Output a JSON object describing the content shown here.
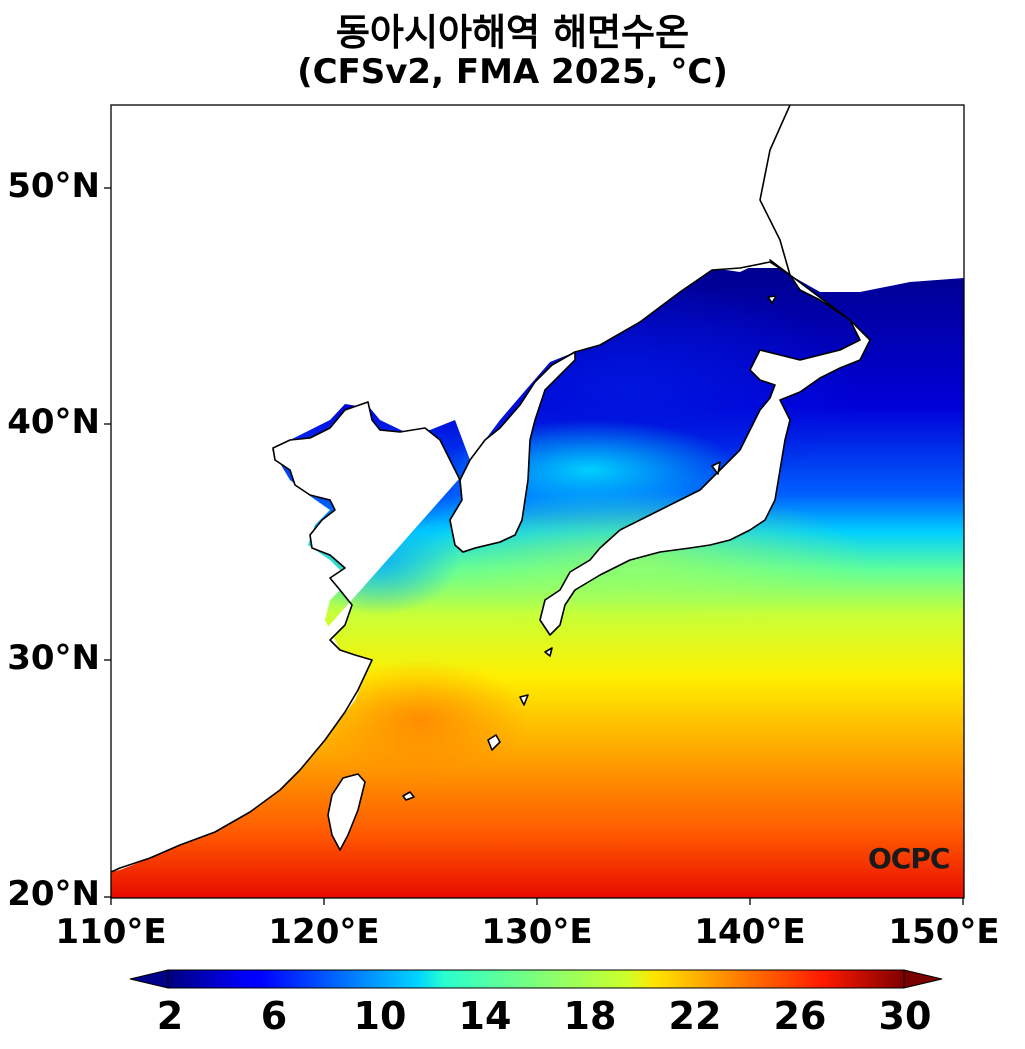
{
  "title": {
    "line1": "동아시아해역 해면수온",
    "line2": "(CFSv2, FMA 2025, °C)"
  },
  "map": {
    "lon_range": [
      110,
      150
    ],
    "lat_range": [
      20,
      53.5
    ],
    "y_ticks": [
      {
        "lat": 50,
        "label": "50°N"
      },
      {
        "lat": 40,
        "label": "40°N"
      },
      {
        "lat": 30,
        "label": "30°N"
      },
      {
        "lat": 20,
        "label": "20°N"
      }
    ],
    "x_ticks": [
      {
        "lon": 110,
        "label": "110°E"
      },
      {
        "lon": 120,
        "label": "120°E"
      },
      {
        "lon": 130,
        "label": "130°E"
      },
      {
        "lon": 140,
        "label": "140°E"
      },
      {
        "lon": 150,
        "label": "150°E"
      }
    ],
    "colormap": "jet",
    "land_color": "#ffffff",
    "coast_color": "#000000"
  },
  "colorbar": {
    "min": 0,
    "max": 32,
    "ticks": [
      {
        "value": 2,
        "label": "2"
      },
      {
        "value": 6,
        "label": "6"
      },
      {
        "value": 10,
        "label": "10"
      },
      {
        "value": 14,
        "label": "14"
      },
      {
        "value": 18,
        "label": "18"
      },
      {
        "value": 22,
        "label": "22"
      },
      {
        "value": 26,
        "label": "26"
      },
      {
        "value": 30,
        "label": "30"
      }
    ],
    "extend": "both"
  },
  "logo": "OCPC"
}
